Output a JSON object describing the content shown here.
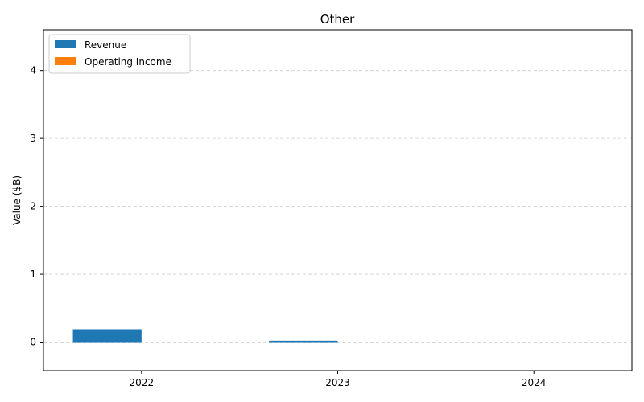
{
  "chart_data": {
    "type": "bar",
    "title": "Other",
    "xlabel": "",
    "ylabel": "Value ($B)",
    "categories": [
      "2022",
      "2023",
      "2024"
    ],
    "series": [
      {
        "name": "Revenue",
        "values": [
          0.19,
          0.02,
          0.0
        ],
        "color": "#1f77b4"
      },
      {
        "name": "Operating Income",
        "values": [
          0.0,
          0.0,
          0.0
        ],
        "color": "#ff7f0e"
      }
    ],
    "ylim": [
      -0.42,
      4.6
    ],
    "yticks": [
      0,
      1,
      2,
      3,
      4
    ],
    "grid": "y-dashed",
    "legend_position": "top-left"
  }
}
